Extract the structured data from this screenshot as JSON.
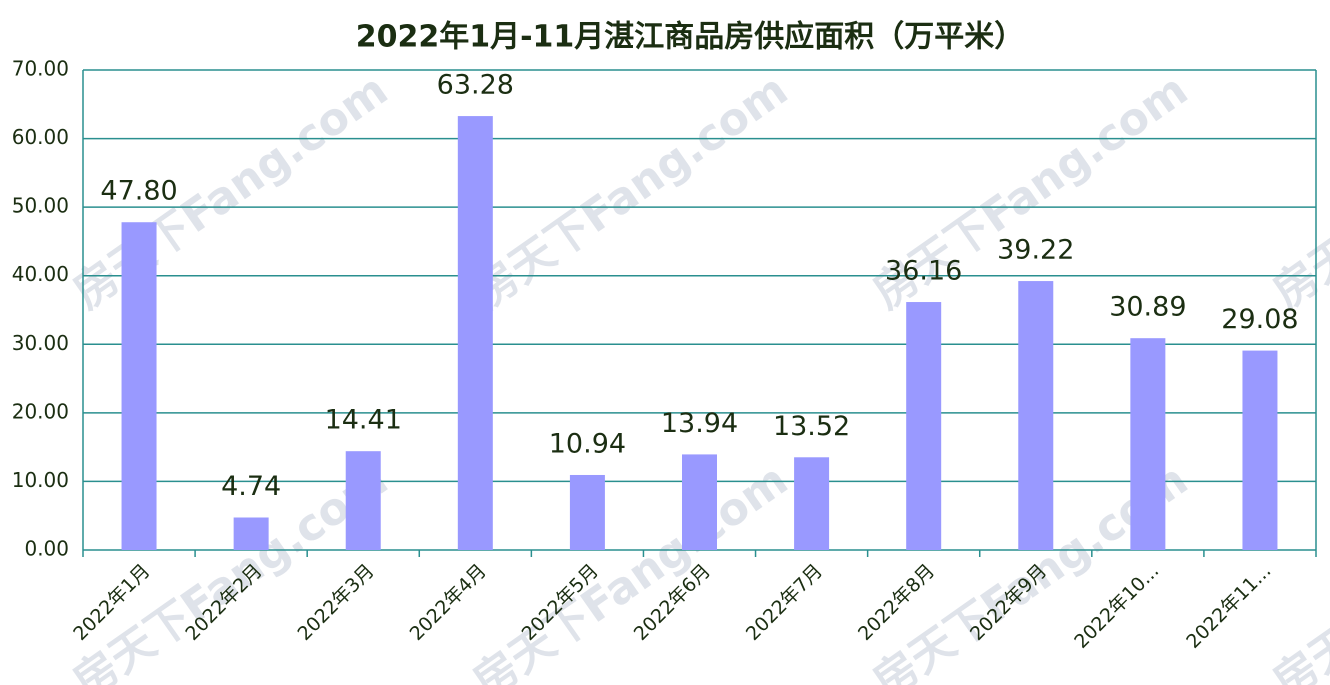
{
  "chart_data": {
    "type": "bar",
    "title": "2022年1月-11月湛江商品房供应面积（万平米）",
    "watermark": "房天下Fang.com",
    "categories": [
      "2022年1月",
      "2022年2月",
      "2022年3月",
      "2022年4月",
      "2022年5月",
      "2022年6月",
      "2022年7月",
      "2022年8月",
      "2022年9月",
      "2022年10...",
      "2022年11..."
    ],
    "values": [
      47.8,
      4.74,
      14.41,
      63.28,
      10.94,
      13.94,
      13.52,
      36.16,
      39.22,
      30.89,
      29.08
    ],
    "value_labels": [
      "47.80",
      "4.74",
      "14.41",
      "63.28",
      "10.94",
      "13.94",
      "13.52",
      "36.16",
      "39.22",
      "30.89",
      "29.08"
    ],
    "color": "#9999ff",
    "ylim": [
      0,
      70
    ],
    "yticks": [
      {
        "value": 0,
        "label": "0.00"
      },
      {
        "value": 10,
        "label": "10.00"
      },
      {
        "value": 20,
        "label": "20.00"
      },
      {
        "value": 30,
        "label": "30.00"
      },
      {
        "value": 40,
        "label": "40.00"
      },
      {
        "value": 50,
        "label": "50.00"
      },
      {
        "value": 60,
        "label": "60.00"
      },
      {
        "value": 70,
        "label": "70.00"
      }
    ],
    "grid": true
  }
}
